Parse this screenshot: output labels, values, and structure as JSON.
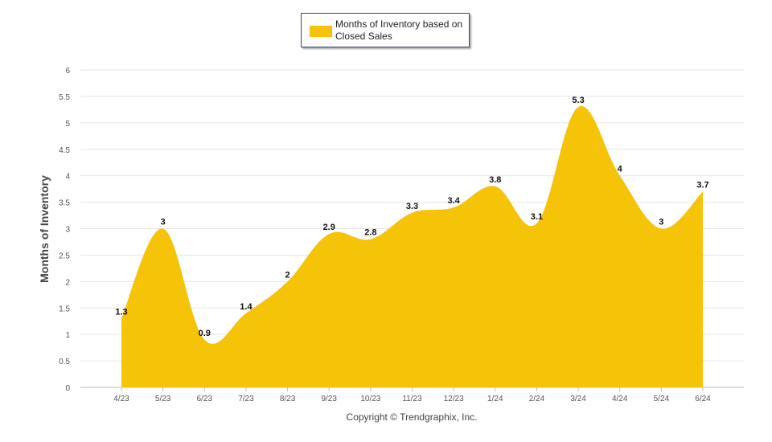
{
  "chart_data": {
    "type": "area",
    "categories": [
      "4/23",
      "5/23",
      "6/23",
      "7/23",
      "8/23",
      "9/23",
      "10/23",
      "11/23",
      "12/23",
      "1/24",
      "2/24",
      "3/24",
      "4/24",
      "5/24",
      "6/24"
    ],
    "series": [
      {
        "name": "Months of Inventory based on Closed Sales",
        "values": [
          1.3,
          3,
          0.9,
          1.4,
          2,
          2.9,
          2.8,
          3.3,
          3.4,
          3.8,
          3.1,
          5.3,
          4,
          3,
          3.7
        ],
        "color": "#F5C308"
      }
    ],
    "data_labels": [
      "1.3",
      "3",
      "0.9",
      "1.4",
      "2",
      "2.9",
      "2.8",
      "3.3",
      "3.4",
      "3.8",
      "3.1",
      "5.3",
      "4",
      "3",
      "3.7"
    ],
    "ylabel": "Months of Inventory",
    "xlabel": "",
    "ylim": [
      0,
      6
    ],
    "yticks": [
      "0",
      "0.5",
      "1",
      "1.5",
      "2",
      "2.5",
      "3",
      "3.5",
      "4",
      "4.5",
      "5",
      "5.5",
      "6"
    ],
    "ytick_values": [
      0,
      0.5,
      1,
      1.5,
      2,
      2.5,
      3,
      3.5,
      4,
      4.5,
      5,
      5.5,
      6
    ],
    "grid": true,
    "legend_position": "top-center"
  },
  "legend": {
    "label": "Months of Inventory based on Closed Sales",
    "color": "#F5C308"
  },
  "copyright": "Copyright © Trendgraphix, Inc."
}
